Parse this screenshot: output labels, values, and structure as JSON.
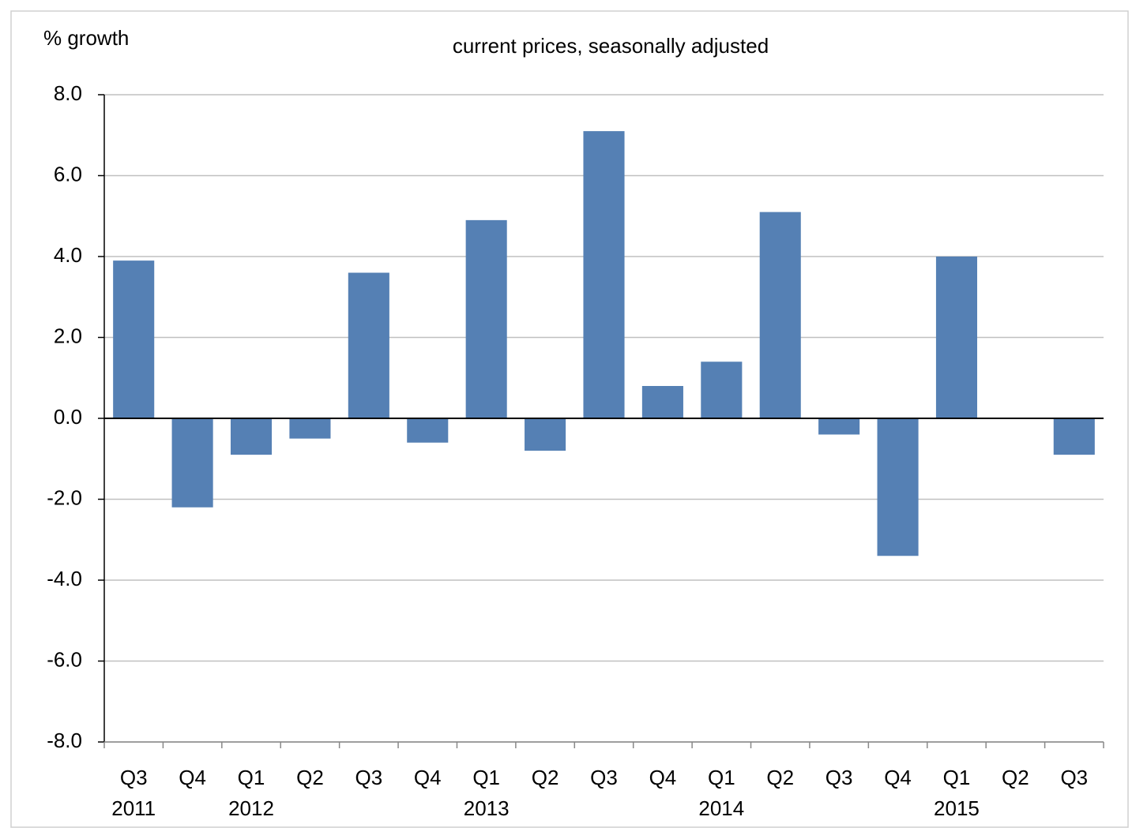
{
  "chart_data": {
    "type": "bar",
    "title": "current prices, seasonally adjusted",
    "y_label": "% growth",
    "categories": [
      "Q3",
      "Q4",
      "Q1",
      "Q2",
      "Q3",
      "Q4",
      "Q1",
      "Q2",
      "Q3",
      "Q4",
      "Q1",
      "Q2",
      "Q3",
      "Q4",
      "Q1",
      "Q2",
      "Q3"
    ],
    "groups": [
      "2011",
      null,
      "2012",
      null,
      null,
      null,
      "2013",
      null,
      null,
      null,
      "2014",
      null,
      null,
      null,
      "2015",
      null,
      null
    ],
    "values": [
      3.9,
      -2.2,
      -0.9,
      -0.5,
      3.6,
      -0.6,
      4.9,
      -0.8,
      7.1,
      0.8,
      1.4,
      5.1,
      -0.4,
      -3.4,
      4.0,
      0,
      -0.9
    ],
    "color": "#5580b4",
    "ylim": [
      -8,
      8
    ],
    "yticks": [
      {
        "value": -8,
        "label": "-8.0"
      },
      {
        "value": -6,
        "label": "-6.0"
      },
      {
        "value": -4,
        "label": "-4.0"
      },
      {
        "value": -2,
        "label": "-2.0"
      },
      {
        "value": 0,
        "label": "0.0"
      },
      {
        "value": 2,
        "label": "2.0"
      },
      {
        "value": 4,
        "label": "4.0"
      },
      {
        "value": 6,
        "label": "6.0"
      },
      {
        "value": 8,
        "label": "8.0"
      }
    ],
    "grid": true
  }
}
